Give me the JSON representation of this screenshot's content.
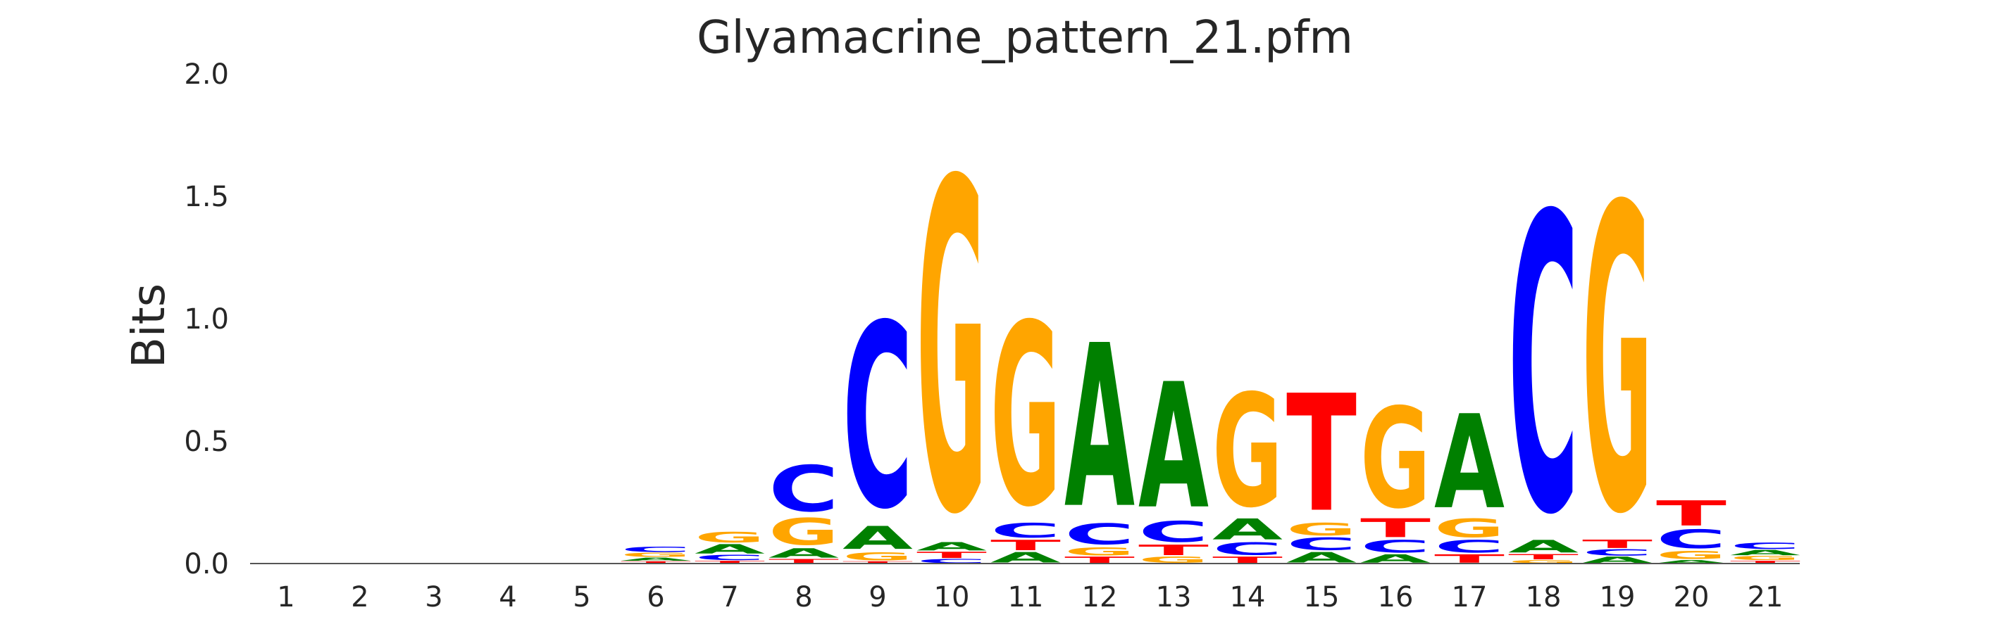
{
  "chart_data": {
    "type": "sequence-logo",
    "title": "Glyamacrine_pattern_21.pfm",
    "xlabel": "",
    "ylabel": "Bits",
    "ylim": [
      0,
      2.0
    ],
    "yticks": [
      "0.0",
      "0.5",
      "1.0",
      "1.5",
      "2.0"
    ],
    "grid": false,
    "colors": {
      "A": "#008000",
      "C": "#0000ff",
      "G": "#ffa500",
      "T": "#ff0000"
    },
    "positions": [
      {
        "pos": "1",
        "stack": []
      },
      {
        "pos": "2",
        "stack": []
      },
      {
        "pos": "3",
        "stack": []
      },
      {
        "pos": "4",
        "stack": []
      },
      {
        "pos": "5",
        "stack": []
      },
      {
        "pos": "6",
        "stack": [
          [
            "T",
            0.01
          ],
          [
            "A",
            0.015
          ],
          [
            "G",
            0.02
          ],
          [
            "C",
            0.025
          ]
        ]
      },
      {
        "pos": "7",
        "stack": [
          [
            "T",
            0.012
          ],
          [
            "C",
            0.025
          ],
          [
            "A",
            0.045
          ],
          [
            "G",
            0.05
          ]
        ]
      },
      {
        "pos": "8",
        "stack": [
          [
            "T",
            0.02
          ],
          [
            "A",
            0.045
          ],
          [
            "G",
            0.13
          ],
          [
            "C",
            0.22
          ]
        ]
      },
      {
        "pos": "9",
        "stack": [
          [
            "T",
            0.01
          ],
          [
            "G",
            0.04
          ],
          [
            "A",
            0.11
          ],
          [
            "C",
            0.88
          ]
        ]
      },
      {
        "pos": "10",
        "stack": [
          [
            "C",
            0.02
          ],
          [
            "T",
            0.03
          ],
          [
            "A",
            0.04
          ],
          [
            "G",
            1.58
          ]
        ]
      },
      {
        "pos": "11",
        "stack": [
          [
            "A",
            0.05
          ],
          [
            "T",
            0.05
          ],
          [
            "C",
            0.07
          ],
          [
            "G",
            0.87
          ]
        ]
      },
      {
        "pos": "12",
        "stack": [
          [
            "T",
            0.03
          ],
          [
            "G",
            0.04
          ],
          [
            "C",
            0.1
          ],
          [
            "A",
            0.78
          ]
        ]
      },
      {
        "pos": "13",
        "stack": [
          [
            "G",
            0.03
          ],
          [
            "T",
            0.05
          ],
          [
            "C",
            0.1
          ],
          [
            "A",
            0.6
          ]
        ]
      },
      {
        "pos": "14",
        "stack": [
          [
            "T",
            0.03
          ],
          [
            "C",
            0.06
          ],
          [
            "A",
            0.1
          ],
          [
            "G",
            0.54
          ]
        ]
      },
      {
        "pos": "15",
        "stack": [
          [
            "A",
            0.05
          ],
          [
            "C",
            0.06
          ],
          [
            "G",
            0.06
          ],
          [
            "T",
            0.56
          ]
        ]
      },
      {
        "pos": "16",
        "stack": [
          [
            "A",
            0.04
          ],
          [
            "C",
            0.06
          ],
          [
            "T",
            0.09
          ],
          [
            "G",
            0.48
          ]
        ]
      },
      {
        "pos": "17",
        "stack": [
          [
            "T",
            0.04
          ],
          [
            "C",
            0.06
          ],
          [
            "G",
            0.09
          ],
          [
            "A",
            0.45
          ]
        ]
      },
      {
        "pos": "18",
        "stack": [
          [
            "G",
            0.015
          ],
          [
            "T",
            0.025
          ],
          [
            "A",
            0.06
          ],
          [
            "C",
            1.42
          ]
        ]
      },
      {
        "pos": "19",
        "stack": [
          [
            "A",
            0.03
          ],
          [
            "C",
            0.03
          ],
          [
            "T",
            0.04
          ],
          [
            "G",
            1.46
          ]
        ]
      },
      {
        "pos": "20",
        "stack": [
          [
            "A",
            0.015
          ],
          [
            "G",
            0.04
          ],
          [
            "C",
            0.09
          ],
          [
            "T",
            0.12
          ]
        ]
      },
      {
        "pos": "21",
        "stack": [
          [
            "T",
            0.012
          ],
          [
            "G",
            0.02
          ],
          [
            "A",
            0.025
          ],
          [
            "C",
            0.03
          ]
        ]
      }
    ]
  }
}
